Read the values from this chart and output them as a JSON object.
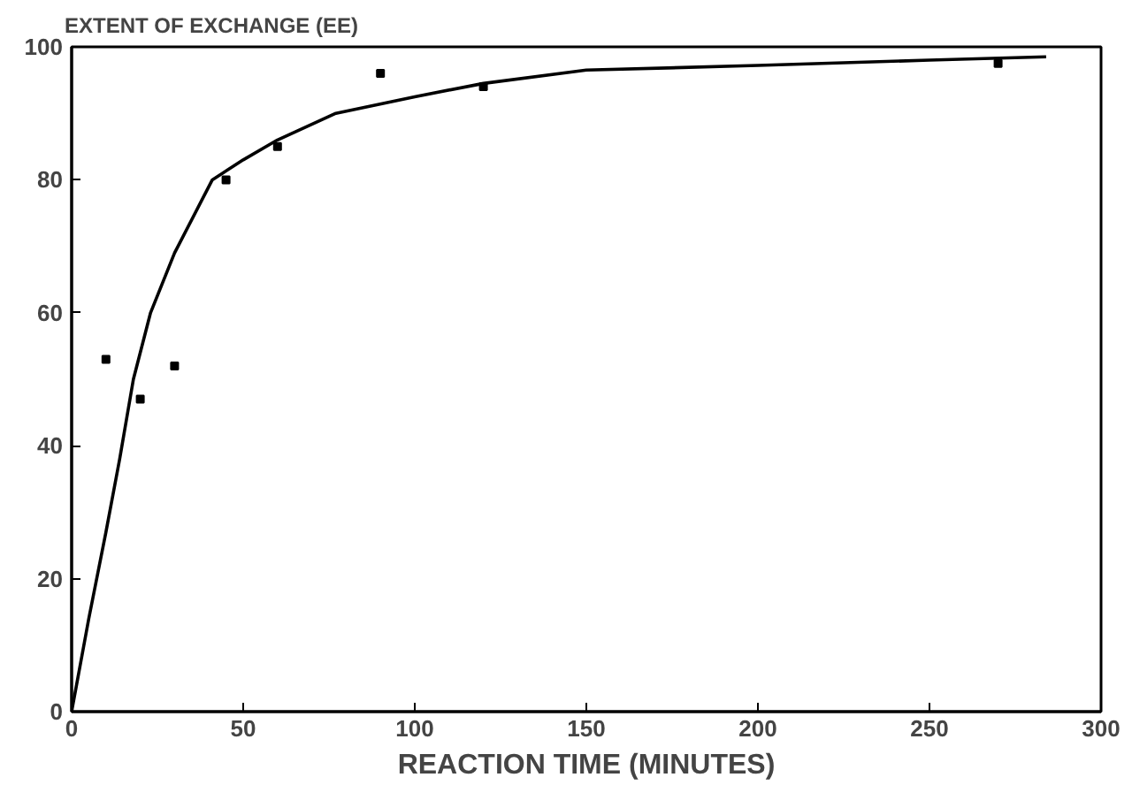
{
  "chart_data": {
    "type": "scatter",
    "ylabel": "EXTENT OF EXCHANGE (EE)",
    "xlabel": "REACTION TIME (MINUTES)",
    "xlim": [
      0,
      300
    ],
    "ylim": [
      0,
      100
    ],
    "xticks": [
      0,
      50,
      100,
      150,
      200,
      250,
      300
    ],
    "yticks": [
      0,
      20,
      40,
      60,
      80,
      100
    ],
    "grid": false,
    "marker": "square",
    "series": [
      {
        "color": "#000000",
        "x": [
          10,
          20,
          30,
          45,
          60,
          90,
          120,
          270
        ],
        "values": [
          53,
          47,
          52,
          80,
          85,
          96,
          94,
          97.5
        ]
      },
      {
        "type": "line",
        "color": "#000000",
        "line_style": "solid",
        "marker": "none",
        "x": [
          0,
          5,
          10,
          14,
          18,
          23,
          30,
          41,
          50,
          60,
          77,
          100,
          120,
          150,
          200,
          250,
          284
        ],
        "values": [
          0,
          14,
          27,
          38,
          50,
          60,
          69,
          80,
          83,
          86,
          90,
          92.5,
          94.5,
          96.5,
          97.2,
          98,
          98.5
        ]
      }
    ]
  }
}
